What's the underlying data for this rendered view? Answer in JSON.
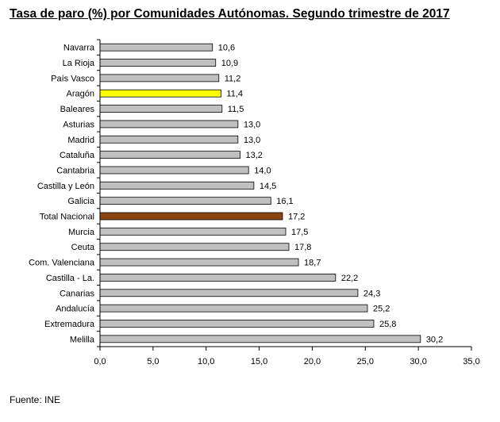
{
  "chart_data": {
    "type": "bar",
    "orientation": "horizontal",
    "title": "Tasa de paro (%) por Comunidades Autónomas. Segundo trimestre de 2017",
    "source": "Fuente: INE",
    "categories": [
      "Navarra",
      "La Rioja",
      "País Vasco",
      "Aragón",
      "Baleares",
      "Asturias",
      "Madrid",
      "Cataluña",
      "Cantabria",
      "Castilla y León",
      "Galicia",
      "Total Nacional",
      "Murcia",
      "Ceuta",
      "Com. Valenciana",
      "Castilla - La.",
      "Canarias",
      "Andalucía",
      "Extremadura",
      "Melilla"
    ],
    "values": [
      10.6,
      10.9,
      11.2,
      11.4,
      11.5,
      13.0,
      13.0,
      13.2,
      14.0,
      14.5,
      16.1,
      17.2,
      17.5,
      17.8,
      18.7,
      22.2,
      24.3,
      25.2,
      25.8,
      30.2
    ],
    "value_labels": [
      "10,6",
      "10,9",
      "11,2",
      "11,4",
      "11,5",
      "13,0",
      "13,0",
      "13,2",
      "14,0",
      "14,5",
      "16,1",
      "17,2",
      "17,5",
      "17,8",
      "18,7",
      "22,2",
      "24,3",
      "25,2",
      "25,8",
      "30,2"
    ],
    "xlim": [
      0,
      35
    ],
    "xticks": [
      0,
      5,
      10,
      15,
      20,
      25,
      30,
      35
    ],
    "xtick_labels": [
      "0,0",
      "5,0",
      "10,0",
      "15,0",
      "20,0",
      "25,0",
      "30,0",
      "35,0"
    ],
    "grid": false,
    "colors": {
      "default_bar": "#c0c0c0",
      "highlight_aragon": "#ffff00",
      "highlight_total": "#8b4513",
      "bar_border": "#000000"
    },
    "highlights": {
      "Aragón": "highlight_aragon",
      "Total Nacional": "highlight_total"
    }
  }
}
